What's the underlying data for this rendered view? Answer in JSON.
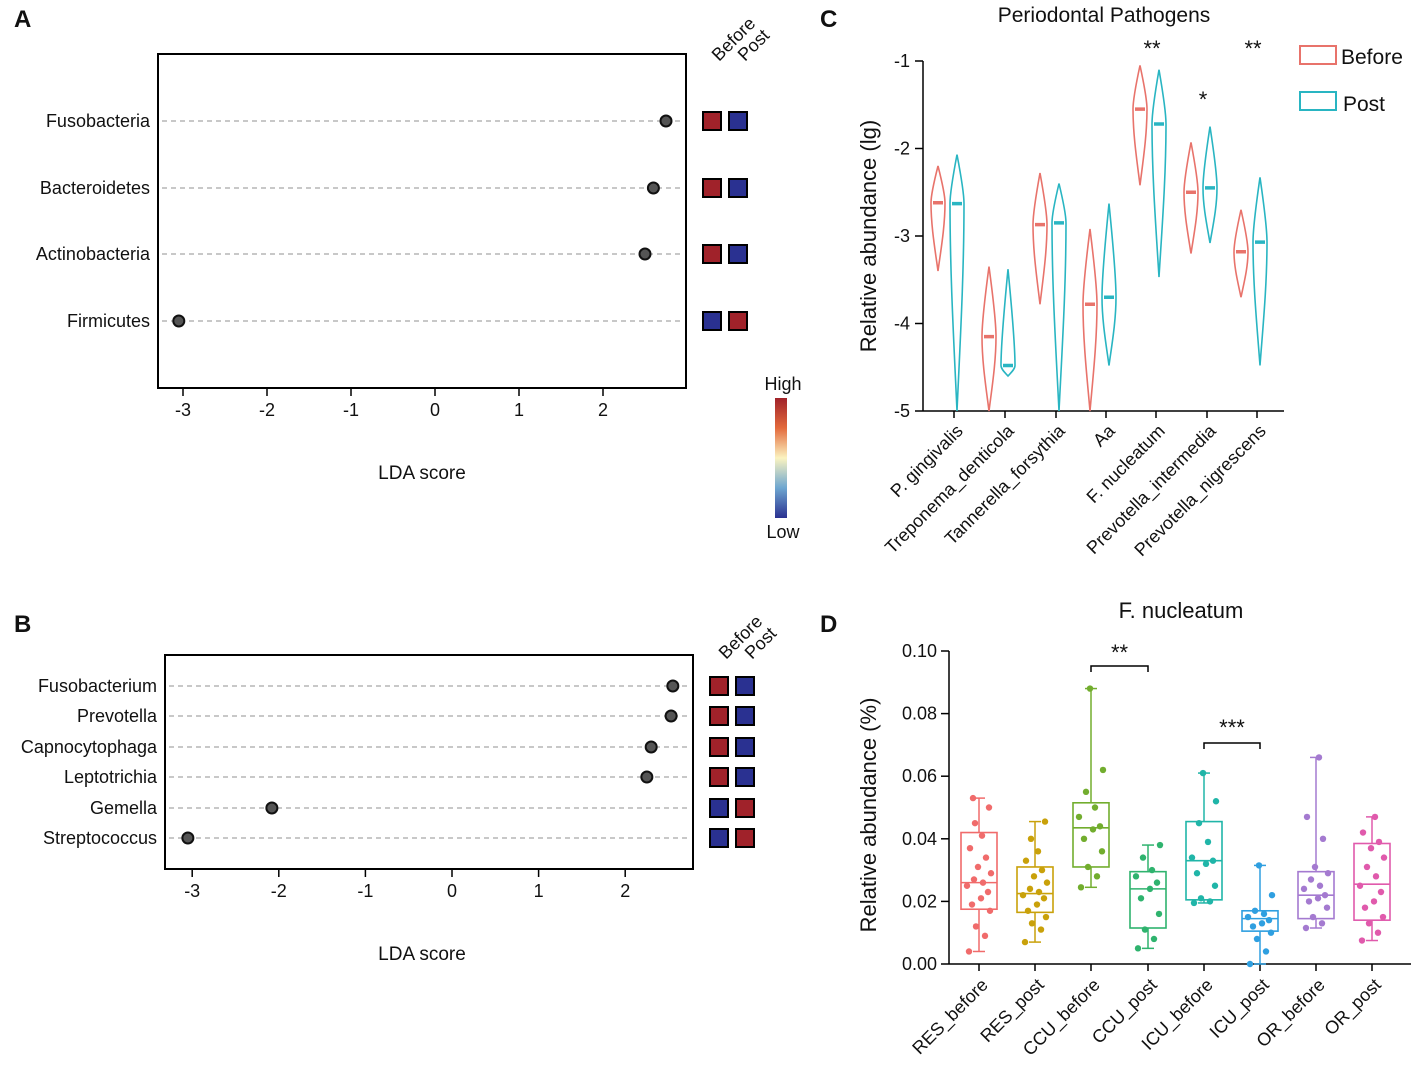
{
  "figure": {
    "panel_labels": [
      "A",
      "B",
      "C",
      "D"
    ],
    "colorbar": {
      "high_label": "High",
      "low_label": "Low",
      "high_color": "#a0222a",
      "low_color": "#2a3191"
    }
  },
  "colors": {
    "red_box": "#a0222a",
    "blue_box": "#2a3191",
    "before_color": "#e8736b",
    "post_color": "#29b5c2"
  },
  "chart_data": [
    {
      "id": "A",
      "type": "scatter",
      "title": "",
      "xlabel": "LDA score",
      "xlim": [
        -3.3,
        3
      ],
      "xticks": [
        -3,
        -2,
        -1,
        0,
        1,
        2
      ],
      "columns": [
        "Before",
        "Post"
      ],
      "items": [
        {
          "label": "Fusobacteria",
          "score": 2.75,
          "before": "high",
          "post": "low"
        },
        {
          "label": "Bacteroidetes",
          "score": 2.6,
          "before": "high",
          "post": "low"
        },
        {
          "label": "Actinobacteria",
          "score": 2.5,
          "before": "high",
          "post": "low"
        },
        {
          "label": "Firmicutes",
          "score": -3.05,
          "before": "low",
          "post": "high"
        }
      ]
    },
    {
      "id": "B",
      "type": "scatter",
      "title": "",
      "xlabel": "LDA score",
      "xlim": [
        -3.3,
        2.8
      ],
      "xticks": [
        -3,
        -2,
        -1,
        0,
        1,
        2
      ],
      "columns": [
        "Before",
        "Post"
      ],
      "items": [
        {
          "label": "Fusobacterium",
          "score": 2.55,
          "before": "high",
          "post": "low"
        },
        {
          "label": "Prevotella",
          "score": 2.53,
          "before": "high",
          "post": "low"
        },
        {
          "label": "Capnocytophaga",
          "score": 2.3,
          "before": "high",
          "post": "low"
        },
        {
          "label": "Leptotrichia",
          "score": 2.25,
          "before": "high",
          "post": "low"
        },
        {
          "label": "Gemella",
          "score": -2.08,
          "before": "low",
          "post": "high"
        },
        {
          "label": "Streptococcus",
          "score": -3.05,
          "before": "low",
          "post": "high"
        }
      ]
    },
    {
      "id": "C",
      "type": "violin",
      "title": "Periodontal Pathogens",
      "ylabel": "Relative abundance (lg)",
      "ylim": [
        -5,
        -1
      ],
      "yticks": [
        -1,
        -2,
        -3,
        -4,
        -5
      ],
      "legend": [
        "Before",
        "Post"
      ],
      "categories": [
        "P. gingivalis",
        "Treponema_denticola",
        "Tannerella_forsythia",
        "Aa",
        "F. nucleatum",
        "Prevotella_intermedia",
        "Prevotella_nigrescens"
      ],
      "significance": [
        "",
        "",
        "",
        "",
        "**",
        "*",
        "**"
      ],
      "series": [
        {
          "name": "Before",
          "median": [
            -2.62,
            -4.15,
            -2.87,
            -3.78,
            -1.55,
            -2.5,
            -3.18
          ],
          "min": [
            -3.4,
            -5.0,
            -3.78,
            -5.0,
            -2.42,
            -3.2,
            -3.7
          ],
          "max": [
            -2.2,
            -3.35,
            -2.28,
            -2.92,
            -1.05,
            -1.93,
            -2.7
          ]
        },
        {
          "name": "Post",
          "median": [
            -2.63,
            -4.48,
            -2.85,
            -3.7,
            -1.72,
            -2.45,
            -3.07
          ],
          "min": [
            -5.0,
            -4.6,
            -5.0,
            -4.48,
            -3.47,
            -3.08,
            -4.48
          ],
          "max": [
            -2.07,
            -3.38,
            -2.4,
            -2.63,
            -1.1,
            -1.75,
            -2.33
          ]
        }
      ]
    },
    {
      "id": "D",
      "type": "box",
      "title": "F. nucleatum",
      "ylabel": "Relative abundance (%)",
      "ylim": [
        0,
        0.1
      ],
      "yticks": [
        "0.00",
        "0.02",
        "0.04",
        "0.06",
        "0.08",
        "0.10"
      ],
      "categories": [
        "RES_before",
        "RES_post",
        "CCU_before",
        "CCU_post",
        "ICU_before",
        "ICU_post",
        "OR_before",
        "OR_post"
      ],
      "colors": [
        "#f06b6b",
        "#c9a10a",
        "#72ad2e",
        "#2fb36e",
        "#20b5a8",
        "#2f9fe0",
        "#a47ad0",
        "#e05aac"
      ],
      "box_stats": [
        {
          "min": 0.004,
          "q1": 0.0175,
          "median": 0.026,
          "q3": 0.042,
          "max": 0.053
        },
        {
          "min": 0.007,
          "q1": 0.0165,
          "median": 0.0225,
          "q3": 0.031,
          "max": 0.0455
        },
        {
          "min": 0.0245,
          "q1": 0.031,
          "median": 0.0435,
          "q3": 0.0515,
          "max": 0.088
        },
        {
          "min": 0.005,
          "q1": 0.0115,
          "median": 0.024,
          "q3": 0.0295,
          "max": 0.038
        },
        {
          "min": 0.0195,
          "q1": 0.0205,
          "median": 0.033,
          "q3": 0.0455,
          "max": 0.061
        },
        {
          "min": 0.0,
          "q1": 0.0105,
          "median": 0.0145,
          "q3": 0.017,
          "max": 0.0315
        },
        {
          "min": 0.0115,
          "q1": 0.0145,
          "median": 0.022,
          "q3": 0.0295,
          "max": 0.066
        },
        {
          "min": 0.0075,
          "q1": 0.014,
          "median": 0.0255,
          "q3": 0.0385,
          "max": 0.047
        }
      ],
      "points": [
        [
          0.004,
          0.009,
          0.012,
          0.017,
          0.019,
          0.021,
          0.023,
          0.025,
          0.026,
          0.027,
          0.029,
          0.031,
          0.034,
          0.037,
          0.041,
          0.045,
          0.05,
          0.053
        ],
        [
          0.007,
          0.011,
          0.013,
          0.015,
          0.017,
          0.019,
          0.021,
          0.022,
          0.023,
          0.024,
          0.026,
          0.028,
          0.03,
          0.033,
          0.036,
          0.04,
          0.0455
        ],
        [
          0.0245,
          0.028,
          0.031,
          0.036,
          0.04,
          0.043,
          0.044,
          0.047,
          0.05,
          0.055,
          0.062,
          0.088
        ],
        [
          0.005,
          0.008,
          0.011,
          0.016,
          0.021,
          0.024,
          0.026,
          0.028,
          0.03,
          0.034,
          0.038
        ],
        [
          0.0195,
          0.02,
          0.021,
          0.025,
          0.029,
          0.032,
          0.033,
          0.034,
          0.039,
          0.045,
          0.052,
          0.061
        ],
        [
          0.0,
          0.004,
          0.008,
          0.01,
          0.012,
          0.013,
          0.014,
          0.015,
          0.016,
          0.017,
          0.022,
          0.0315
        ],
        [
          0.0115,
          0.013,
          0.015,
          0.018,
          0.02,
          0.021,
          0.022,
          0.024,
          0.025,
          0.027,
          0.029,
          0.031,
          0.04,
          0.047,
          0.066
        ],
        [
          0.0075,
          0.01,
          0.013,
          0.015,
          0.018,
          0.02,
          0.023,
          0.025,
          0.028,
          0.031,
          0.034,
          0.037,
          0.039,
          0.042,
          0.047
        ]
      ],
      "comparisons": [
        {
          "from": "CCU_before",
          "to": "CCU_post",
          "label": "**"
        },
        {
          "from": "ICU_before",
          "to": "ICU_post",
          "label": "***"
        }
      ]
    }
  ]
}
